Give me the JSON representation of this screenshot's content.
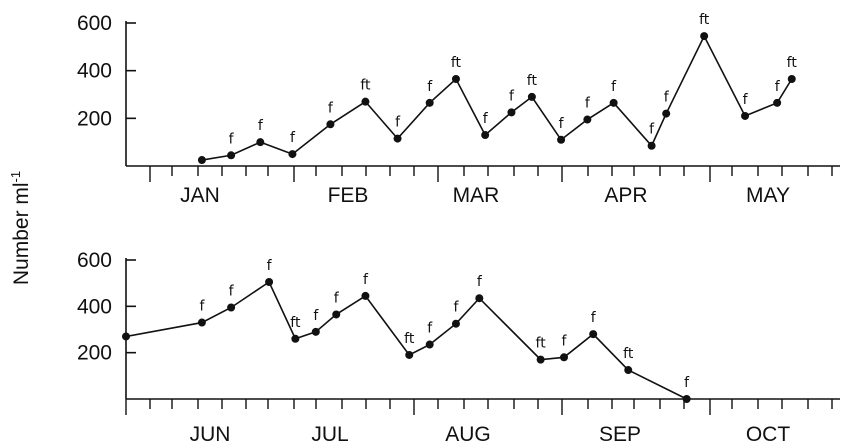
{
  "ylabel": "Number ml",
  "ylabel_sup": "-1",
  "chart_data": [
    {
      "type": "line",
      "panel": "top",
      "ylim": [
        0,
        600
      ],
      "yticks": [
        200,
        400,
        600
      ],
      "months": [
        "JAN",
        "FEB",
        "MAR",
        "APR",
        "MAY"
      ],
      "x": [
        1.3,
        1.8,
        2.3,
        2.85,
        3.5,
        4.1,
        4.65,
        5.2,
        5.65,
        6.15,
        6.6,
        6.95,
        7.45,
        7.9,
        8.35,
        9.0,
        9.25,
        9.9,
        10.6,
        11.15,
        11.4
      ],
      "values": [
        25,
        45,
        100,
        50,
        175,
        270,
        115,
        265,
        365,
        130,
        225,
        290,
        110,
        195,
        265,
        85,
        220,
        545,
        210,
        265,
        365
      ],
      "annotations": [
        "",
        "f",
        "f",
        "f",
        "f",
        "ft",
        "f",
        "f",
        "ft",
        "f",
        "f",
        "ft",
        "f",
        "f",
        "f",
        "f",
        "f",
        "ft",
        "f",
        "f",
        "ft"
      ]
    },
    {
      "type": "line",
      "panel": "bottom",
      "ylim": [
        0,
        600
      ],
      "yticks": [
        200,
        400,
        600
      ],
      "months": [
        "JUN",
        "JUL",
        "AUG",
        "SEP",
        "OCT"
      ],
      "x": [
        0.0,
        1.3,
        1.8,
        2.45,
        2.9,
        3.25,
        3.6,
        4.1,
        4.85,
        5.2,
        5.65,
        6.05,
        7.1,
        7.5,
        8.0,
        8.6,
        9.6
      ],
      "values": [
        270,
        330,
        395,
        505,
        260,
        290,
        365,
        445,
        190,
        235,
        325,
        435,
        170,
        180,
        280,
        125,
        0
      ],
      "annotations": [
        "",
        "f",
        "f",
        "f",
        "ft",
        "f",
        "f",
        "f",
        "ft",
        "f",
        "f",
        "f",
        "ft",
        "f",
        "f",
        "ft",
        "f"
      ]
    }
  ]
}
